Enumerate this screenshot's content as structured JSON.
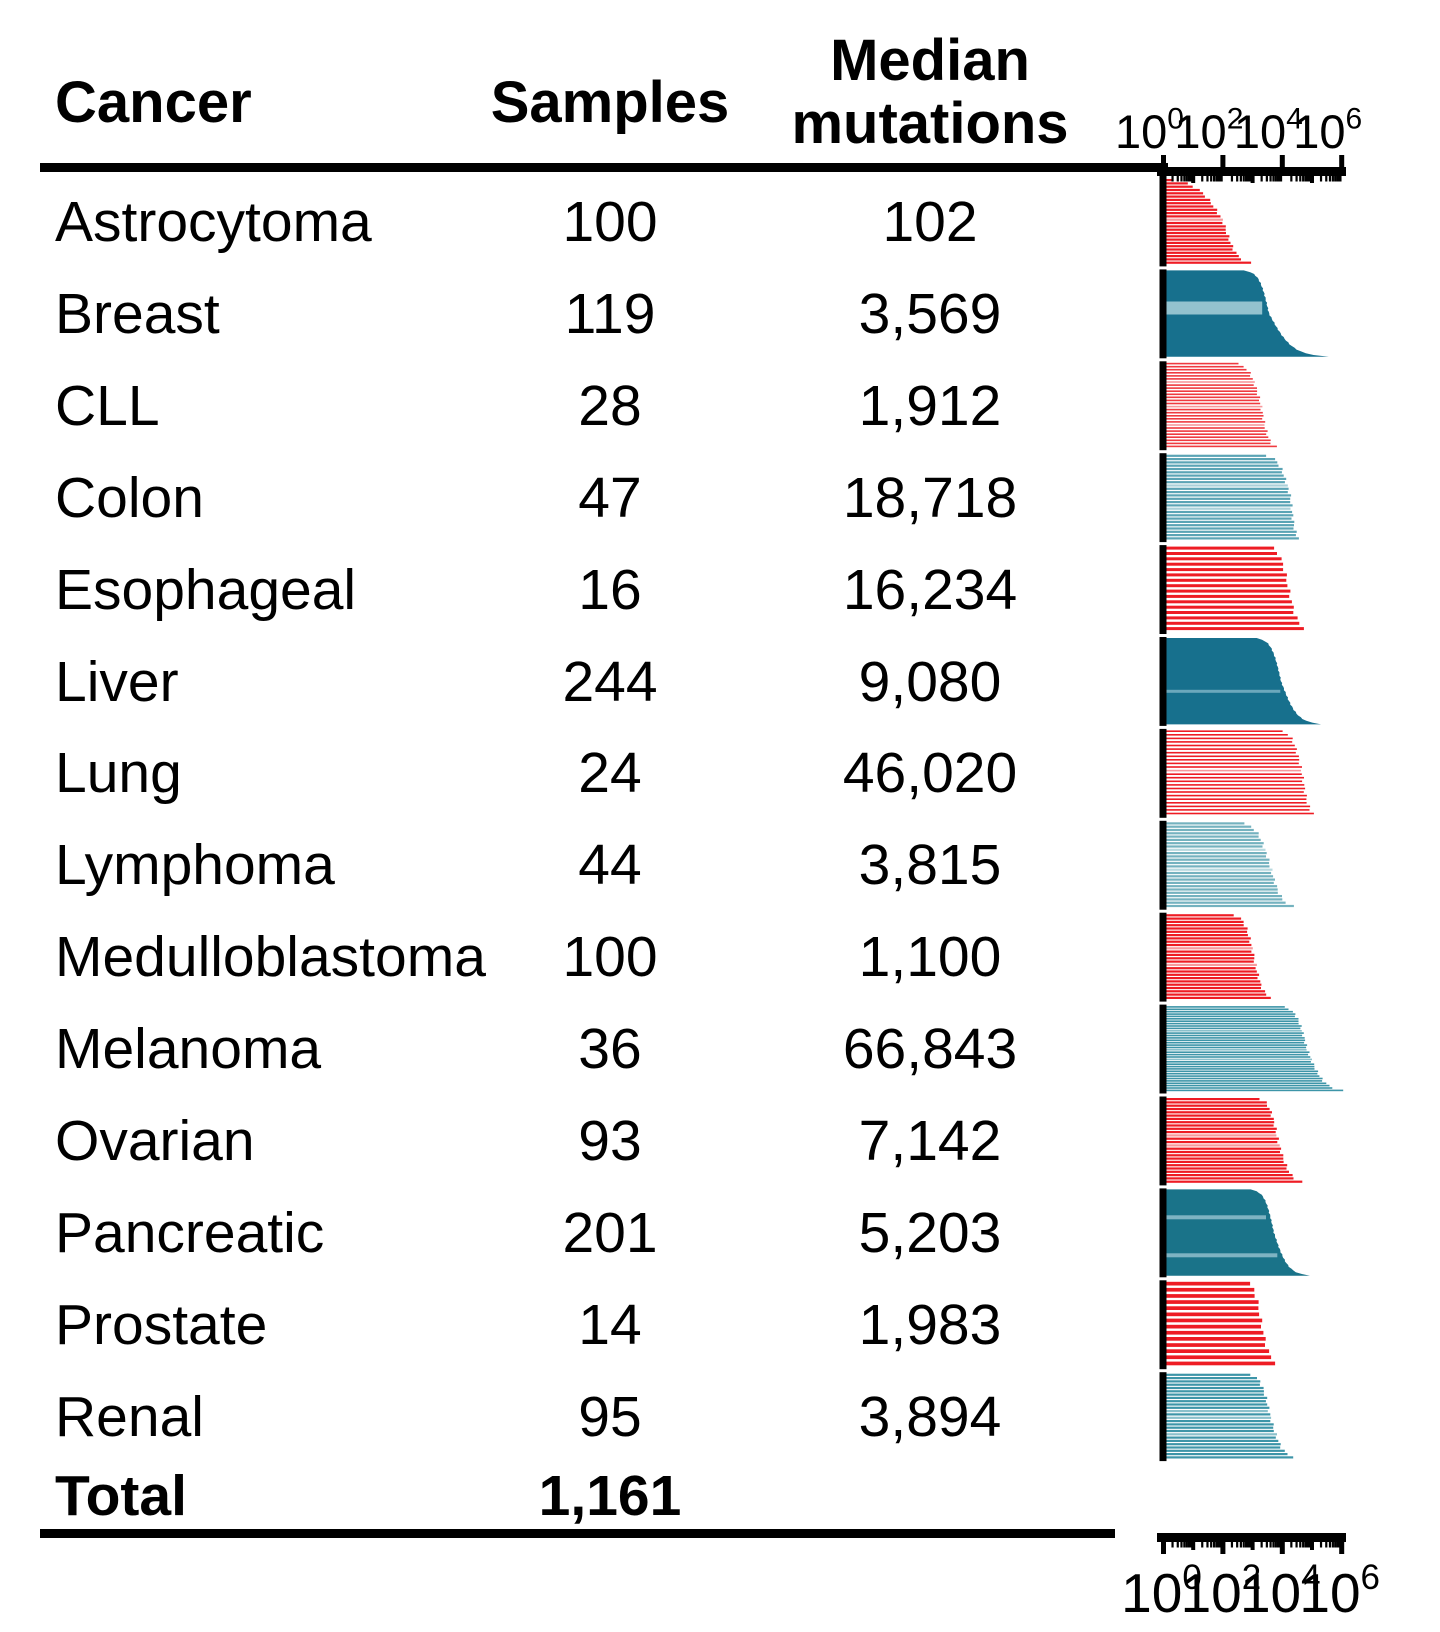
{
  "table": {
    "headers": {
      "cancer": "Cancer",
      "samples": "Samples",
      "median_line1": "Median",
      "median_line2": "mutations"
    },
    "rows": [
      {
        "cancer": "Astrocytoma",
        "samples": "100",
        "median": "102"
      },
      {
        "cancer": "Breast",
        "samples": "119",
        "median": "3,569"
      },
      {
        "cancer": "CLL",
        "samples": "28",
        "median": "1,912"
      },
      {
        "cancer": "Colon",
        "samples": "47",
        "median": "18,718"
      },
      {
        "cancer": "Esophageal",
        "samples": "16",
        "median": "16,234"
      },
      {
        "cancer": "Liver",
        "samples": "244",
        "median": "9,080"
      },
      {
        "cancer": "Lung",
        "samples": "24",
        "median": "46,020"
      },
      {
        "cancer": "Lymphoma",
        "samples": "44",
        "median": "3,815"
      },
      {
        "cancer": "Medulloblastoma",
        "samples": "100",
        "median": "1,100"
      },
      {
        "cancer": "Melanoma",
        "samples": "36",
        "median": "66,843"
      },
      {
        "cancer": "Ovarian",
        "samples": "93",
        "median": "7,142"
      },
      {
        "cancer": "Pancreatic",
        "samples": "201",
        "median": "5,203"
      },
      {
        "cancer": "Prostate",
        "samples": "14",
        "median": "1,983"
      },
      {
        "cancer": "Renal",
        "samples": "95",
        "median": "3,894"
      }
    ],
    "total": {
      "cancer": "Total",
      "samples": "1,161",
      "median": ""
    }
  },
  "chart_data": {
    "type": "bar",
    "orientation": "horizontal",
    "x_scale": "log10",
    "xlim": [
      1,
      1000000
    ],
    "axis_tick_exponents": [
      0,
      2,
      4,
      6
    ],
    "axis_tick_label_base": "10",
    "axis_positions": [
      "top",
      "bottom"
    ],
    "description": "Per-sample somatic mutation counts per cancer type, each sample drawn as a horizontal bar sorted ascending, log10 x-axis from 10^0 to 10^6",
    "series": [
      {
        "cancer": "Astrocytoma",
        "samples": 100,
        "median_mutations": 102,
        "color": "#ee1c24",
        "accent_color": "#f7999c",
        "style": "striped",
        "est_min_exp": 0.4,
        "est_max_exp": 2.85,
        "accents": [
          0.46
        ]
      },
      {
        "cancer": "Breast",
        "samples": 119,
        "median_mutations": 3569,
        "color": "#17708d",
        "accent_color": "#93c2ce",
        "style": "solid",
        "est_min_exp": 2.95,
        "est_max_exp": 5.0,
        "accents": [
          0.36
        ],
        "accent_thickness": 13
      },
      {
        "cancer": "CLL",
        "samples": 28,
        "median_mutations": 1912,
        "color": "#ef3a40",
        "accent_color": "#f7999c",
        "style": "striped",
        "est_min_exp": 2.55,
        "est_max_exp": 3.75,
        "accents": [
          0.22,
          0.5,
          0.72
        ]
      },
      {
        "cancer": "Colon",
        "samples": 47,
        "median_mutations": 18718,
        "color": "#5ba4b5",
        "accent_color": "#a9d0d9",
        "style": "striped",
        "est_min_exp": 3.55,
        "est_max_exp": 4.55,
        "accents": [
          0.35,
          0.6
        ]
      },
      {
        "cancer": "Esophageal",
        "samples": 16,
        "median_mutations": 16234,
        "color": "#ee1c24",
        "accent_color": "#f7999c",
        "style": "striped",
        "est_min_exp": 3.65,
        "est_max_exp": 4.8,
        "accents": []
      },
      {
        "cancer": "Liver",
        "samples": 244,
        "median_mutations": 9080,
        "color": "#17708d",
        "accent_color": "#6ba8bc",
        "style": "solid",
        "est_min_exp": 3.35,
        "est_max_exp": 4.95,
        "accents": [
          0.6
        ],
        "accent_thickness": 3
      },
      {
        "cancer": "Lung",
        "samples": 24,
        "median_mutations": 46020,
        "color": "#ee1c24",
        "accent_color": "#f7999c",
        "style": "striped",
        "est_min_exp": 4.05,
        "est_max_exp": 5.05,
        "accents": [
          0.45
        ]
      },
      {
        "cancer": "Lymphoma",
        "samples": 44,
        "median_mutations": 3815,
        "color": "#74b2bf",
        "accent_color": "#b8d9df",
        "style": "striped",
        "est_min_exp": 2.75,
        "est_max_exp": 4.3,
        "accents": [
          0.3,
          0.55
        ]
      },
      {
        "cancer": "Medulloblastoma",
        "samples": 100,
        "median_mutations": 1100,
        "color": "#ee1c24",
        "accent_color": "#f7999c",
        "style": "striped",
        "est_min_exp": 2.45,
        "est_max_exp": 3.6,
        "accents": [
          0.4,
          0.56
        ]
      },
      {
        "cancer": "Melanoma",
        "samples": 36,
        "median_mutations": 66843,
        "color": "#3d95a8",
        "accent_color": "#8ac0cb",
        "style": "striped",
        "est_min_exp": 4.15,
        "est_max_exp": 5.88,
        "accents": [
          0.28,
          0.5,
          0.62
        ]
      },
      {
        "cancer": "Ovarian",
        "samples": 93,
        "median_mutations": 7142,
        "color": "#ee1c24",
        "accent_color": "#f7999c",
        "style": "striped",
        "est_min_exp": 3.3,
        "est_max_exp": 4.6,
        "accents": [
          0.42,
          0.52
        ]
      },
      {
        "cancer": "Pancreatic",
        "samples": 201,
        "median_mutations": 5203,
        "color": "#1a7389",
        "accent_color": "#7eb3c2",
        "style": "solid",
        "est_min_exp": 3.15,
        "est_max_exp": 4.6,
        "accents": [
          0.3,
          0.74
        ],
        "accent_thickness": 4
      },
      {
        "cancer": "Prostate",
        "samples": 14,
        "median_mutations": 1983,
        "color": "#ee1c24",
        "accent_color": "#f7999c",
        "style": "striped",
        "est_min_exp": 2.85,
        "est_max_exp": 3.85,
        "accents": []
      },
      {
        "cancer": "Renal",
        "samples": 95,
        "median_mutations": 3894,
        "color": "#3d95a8",
        "accent_color": "#8ac0cb",
        "style": "striped",
        "est_min_exp": 3.0,
        "est_max_exp": 4.35,
        "accents": [
          0.44,
          0.5,
          0.68
        ]
      }
    ]
  },
  "palette": {
    "red": "#ee1c24",
    "pink": "#f7999c",
    "dark_teal": "#17708d",
    "medium_teal": "#3d95a8",
    "light_teal": "#74b2bf",
    "axis": "#000000",
    "text": "#000000",
    "background": "#ffffff"
  }
}
